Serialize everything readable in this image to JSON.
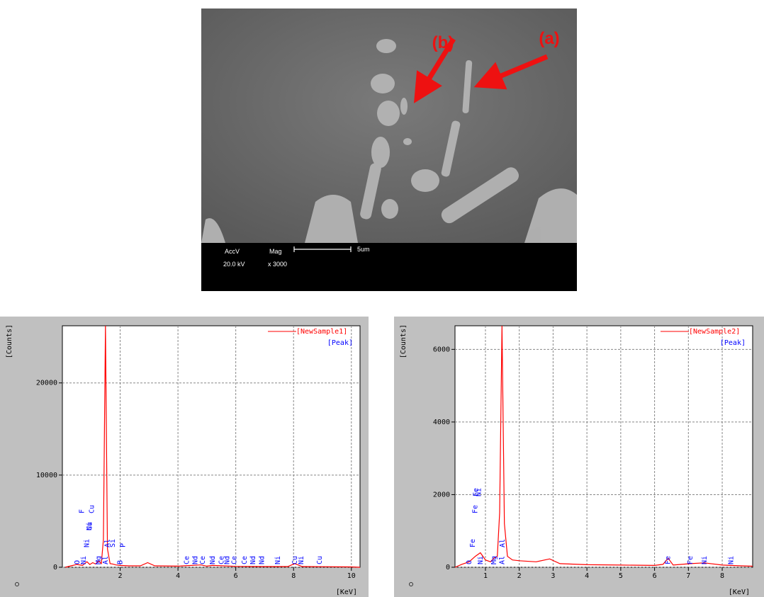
{
  "sem_image": {
    "label_b": "(b)",
    "label_a": "(a)",
    "acc_v_label": "AccV",
    "mag_label": "Mag",
    "scale_label": "5um",
    "acc_v": "20.0 kV",
    "mag": "x 3000"
  },
  "chart_data": [
    {
      "type": "line",
      "ylabel": "[Counts]",
      "xlabel": "[KeV]",
      "peak_legend": "[Peak]",
      "peak_color": "#0000ff",
      "xlim": [
        0,
        10.3
      ],
      "xticks": [
        2,
        4,
        6,
        8,
        10
      ],
      "ylim": [
        0,
        26200
      ],
      "yticks": [
        0,
        10000,
        20000
      ],
      "grid": true,
      "x": [
        0.1,
        0.3,
        0.5,
        0.7,
        0.85,
        0.95,
        1.05,
        1.15,
        1.25,
        1.35,
        1.42,
        1.49,
        1.56,
        1.65,
        1.74,
        1.85,
        2.0,
        2.3,
        2.7,
        2.95,
        3.2,
        4.0,
        4.8,
        5.0,
        5.2,
        6.0,
        7.0,
        7.8,
        8.04,
        8.3,
        9.0,
        10.0,
        10.3
      ],
      "series": [
        {
          "name": "[NewSample1]",
          "color": "#ff0000",
          "values": [
            0,
            150,
            300,
            200,
            600,
            300,
            500,
            350,
            700,
            400,
            3000,
            26200,
            2000,
            400,
            350,
            250,
            200,
            150,
            150,
            500,
            150,
            120,
            250,
            120,
            200,
            100,
            80,
            80,
            400,
            80,
            60,
            40,
            0
          ]
        }
      ],
      "peak_labels": [
        {
          "label": "O",
          "x": 0.52
        },
        {
          "label": "Ni",
          "x": 0.74
        },
        {
          "label": "Ni",
          "x": 0.85
        },
        {
          "label": "Ni",
          "x": 0.93
        },
        {
          "label": "F",
          "x": 0.68
        },
        {
          "label": "Cu",
          "x": 0.95
        },
        {
          "label": "Cu",
          "x": 1.02
        },
        {
          "label": "Mg",
          "x": 1.25
        },
        {
          "label": "Al",
          "x": 1.49
        },
        {
          "label": "Al",
          "x": 1.56
        },
        {
          "label": "Si",
          "x": 1.74
        },
        {
          "label": "B",
          "x": 2.0
        },
        {
          "label": "P",
          "x": 2.1
        },
        {
          "label": "Ce",
          "x": 4.3
        },
        {
          "label": "Nd",
          "x": 4.6
        },
        {
          "label": "Ce",
          "x": 4.85
        },
        {
          "label": "Nd",
          "x": 5.2
        },
        {
          "label": "Ce",
          "x": 5.5
        },
        {
          "label": "Nd",
          "x": 5.7
        },
        {
          "label": "Ce",
          "x": 5.95
        },
        {
          "label": "Ce",
          "x": 6.3
        },
        {
          "label": "Nd",
          "x": 6.6
        },
        {
          "label": "Nd",
          "x": 6.9
        },
        {
          "label": "Ni",
          "x": 7.45
        },
        {
          "label": "Cu",
          "x": 8.04
        },
        {
          "label": "Ni",
          "x": 8.26
        },
        {
          "label": "Cu",
          "x": 8.9
        }
      ]
    },
    {
      "type": "line",
      "ylabel": "[Counts]",
      "xlabel": "[KeV]",
      "peak_legend": "[Peak]",
      "peak_color": "#0000ff",
      "xlim": [
        0.1,
        8.9
      ],
      "xticks": [
        1,
        2,
        3,
        4,
        5,
        6,
        7,
        8
      ],
      "ylim": [
        0,
        6650
      ],
      "yticks": [
        0,
        2000,
        4000,
        6000
      ],
      "grid": true,
      "x": [
        0.1,
        0.3,
        0.52,
        0.7,
        0.85,
        1.0,
        1.15,
        1.25,
        1.35,
        1.42,
        1.49,
        1.56,
        1.65,
        1.8,
        2.0,
        2.5,
        2.9,
        3.2,
        4,
        5,
        6,
        6.25,
        6.4,
        6.55,
        7.06,
        7.47,
        8.0,
        8.5,
        8.9
      ],
      "series": [
        {
          "name": "[NewSample2]",
          "color": "#ff0000",
          "values": [
            0,
            80,
            150,
            300,
            400,
            200,
            150,
            250,
            300,
            1500,
            6650,
            1200,
            300,
            200,
            180,
            150,
            230,
            100,
            70,
            60,
            50,
            80,
            250,
            60,
            100,
            120,
            60,
            40,
            30
          ]
        }
      ],
      "peak_labels": [
        {
          "label": "O",
          "x": 0.52
        },
        {
          "label": "Fe",
          "x": 0.62
        },
        {
          "label": "Ni",
          "x": 0.85
        },
        {
          "label": "Fe",
          "x": 0.7
        },
        {
          "label": "Fe",
          "x": 0.72
        },
        {
          "label": "Ni",
          "x": 0.8
        },
        {
          "label": "Mg",
          "x": 1.25
        },
        {
          "label": "Al",
          "x": 1.49
        },
        {
          "label": "Al",
          "x": 1.5
        },
        {
          "label": "Fe",
          "x": 6.4
        },
        {
          "label": "Fe",
          "x": 7.06
        },
        {
          "label": "Ni",
          "x": 7.47
        },
        {
          "label": "Ni",
          "x": 8.26
        }
      ]
    }
  ]
}
